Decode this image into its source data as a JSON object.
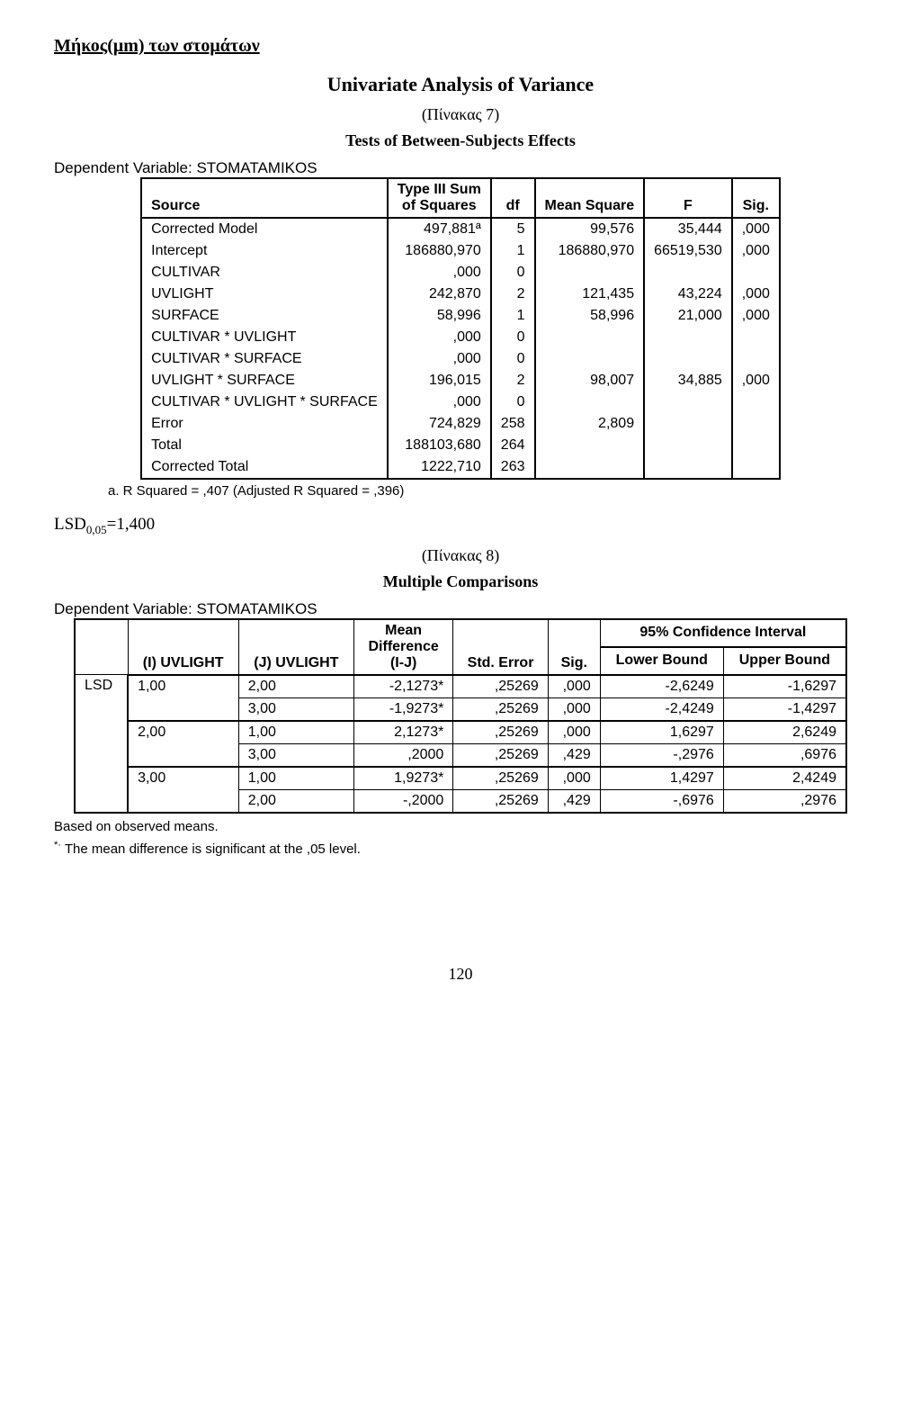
{
  "page_title": "Μήκος(μm) των στομάτων",
  "section_heading": "Univariate Analysis of Variance",
  "pinakas7": "(Πίνακας 7)",
  "tests_title": "Tests of Between-Subjects Effects",
  "dep_var_label": "Dependent Variable: STOMATAMIKOS",
  "anova": {
    "headers": {
      "source": "Source",
      "ss_line1": "Type III Sum",
      "ss_line2": "of Squares",
      "df": "df",
      "ms": "Mean Square",
      "f": "F",
      "sig": "Sig."
    },
    "rows": [
      {
        "source": "Corrected Model",
        "ss": "497,881ª",
        "df": "5",
        "ms": "99,576",
        "f": "35,444",
        "sig": ",000"
      },
      {
        "source": "Intercept",
        "ss": "186880,970",
        "df": "1",
        "ms": "186880,970",
        "f": "66519,530",
        "sig": ",000"
      },
      {
        "source": "CULTIVAR",
        "ss": ",000",
        "df": "0",
        "ms": "",
        "f": "",
        "sig": ""
      },
      {
        "source": "UVLIGHT",
        "ss": "242,870",
        "df": "2",
        "ms": "121,435",
        "f": "43,224",
        "sig": ",000"
      },
      {
        "source": "SURFACE",
        "ss": "58,996",
        "df": "1",
        "ms": "58,996",
        "f": "21,000",
        "sig": ",000"
      },
      {
        "source": "CULTIVAR * UVLIGHT",
        "ss": ",000",
        "df": "0",
        "ms": "",
        "f": "",
        "sig": ""
      },
      {
        "source": "CULTIVAR * SURFACE",
        "ss": ",000",
        "df": "0",
        "ms": "",
        "f": "",
        "sig": ""
      },
      {
        "source": "UVLIGHT * SURFACE",
        "ss": "196,015",
        "df": "2",
        "ms": "98,007",
        "f": "34,885",
        "sig": ",000"
      },
      {
        "source": "CULTIVAR * UVLIGHT * SURFACE",
        "ss": ",000",
        "df": "0",
        "ms": "",
        "f": "",
        "sig": ""
      },
      {
        "source": "Error",
        "ss": "724,829",
        "df": "258",
        "ms": "2,809",
        "f": "",
        "sig": ""
      },
      {
        "source": "Total",
        "ss": "188103,680",
        "df": "264",
        "ms": "",
        "f": "",
        "sig": ""
      },
      {
        "source": "Corrected Total",
        "ss": "1222,710",
        "df": "263",
        "ms": "",
        "f": "",
        "sig": ""
      }
    ],
    "footnote": "a. R Squared = ,407 (Adjusted R Squared = ,396)"
  },
  "lsd_label_prefix": "LSD",
  "lsd_sub": "0,05",
  "lsd_value": "=1,400",
  "pinakas8": "(Πίνακας 8)",
  "mc_title": "Multiple Comparisons",
  "dep_var_label2": "Dependent Variable: STOMATAMIKOS",
  "mc": {
    "headers": {
      "i": "(I) UVLIGHT",
      "j": "(J) UVLIGHT",
      "md_line1": "Mean",
      "md_line2": "Difference",
      "md_line3": "(I-J)",
      "se": "Std. Error",
      "sig": "Sig.",
      "ci": "95% Confidence Interval",
      "lb": "Lower Bound",
      "ub": "Upper Bound"
    },
    "group_label": "LSD",
    "rows": [
      {
        "i": "1,00",
        "j": "2,00",
        "md": "-2,1273*",
        "se": ",25269",
        "sig": ",000",
        "lb": "-2,6249",
        "ub": "-1,6297"
      },
      {
        "i": "",
        "j": "3,00",
        "md": "-1,9273*",
        "se": ",25269",
        "sig": ",000",
        "lb": "-2,4249",
        "ub": "-1,4297"
      },
      {
        "i": "2,00",
        "j": "1,00",
        "md": "2,1273*",
        "se": ",25269",
        "sig": ",000",
        "lb": "1,6297",
        "ub": "2,6249"
      },
      {
        "i": "",
        "j": "3,00",
        "md": ",2000",
        "se": ",25269",
        "sig": ",429",
        "lb": "-,2976",
        "ub": ",6976"
      },
      {
        "i": "3,00",
        "j": "1,00",
        "md": "1,9273*",
        "se": ",25269",
        "sig": ",000",
        "lb": "1,4297",
        "ub": "2,4249"
      },
      {
        "i": "",
        "j": "2,00",
        "md": "-,2000",
        "se": ",25269",
        "sig": ",429",
        "lb": "-,6976",
        "ub": ",2976"
      }
    ],
    "footnote1": "Based on observed means.",
    "footnote2": "The mean difference is significant at the ,05 level."
  },
  "page_number": "120"
}
